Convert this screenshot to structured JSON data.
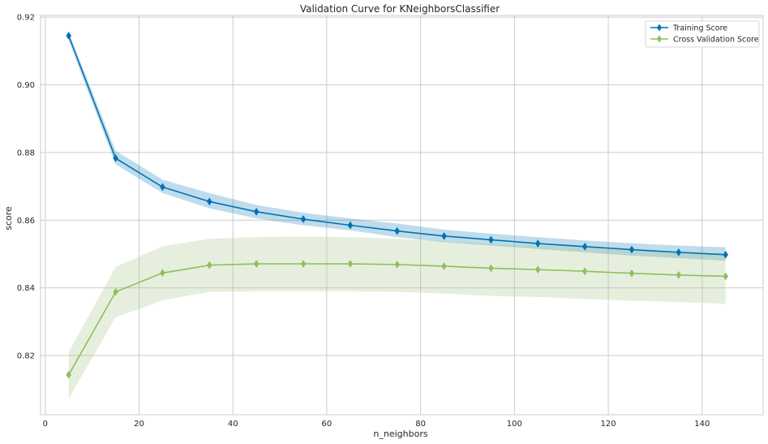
{
  "chart_data": {
    "type": "line",
    "title": "Validation Curve for KNeighborsClassifier",
    "xlabel": "n_neighbors",
    "ylabel": "score",
    "xlim": [
      -1,
      153
    ],
    "ylim": [
      0.8025,
      0.9205
    ],
    "grid": true,
    "legend_position": "top-right",
    "x": [
      5,
      15,
      25,
      35,
      45,
      55,
      65,
      75,
      85,
      95,
      105,
      115,
      125,
      135,
      145
    ],
    "x_ticks": [
      0,
      20,
      40,
      60,
      80,
      100,
      120,
      140
    ],
    "x_tick_labels": [
      "0",
      "20",
      "40",
      "60",
      "80",
      "100",
      "120",
      "140"
    ],
    "y_ticks": [
      0.82,
      0.84,
      0.86,
      0.88,
      0.9,
      0.92
    ],
    "y_tick_labels": [
      "0.82",
      "0.84",
      "0.86",
      "0.88",
      "0.90",
      "0.92"
    ],
    "series": [
      {
        "name": "Training Score",
        "color": "#0072B2",
        "band_color": "#0072B2",
        "marker": "diamond",
        "values": [
          0.9145,
          0.8783,
          0.8698,
          0.8655,
          0.8625,
          0.8603,
          0.8585,
          0.8568,
          0.8553,
          0.8542,
          0.8531,
          0.8522,
          0.8513,
          0.8505,
          0.8498
        ],
        "upper": [
          0.9155,
          0.8805,
          0.872,
          0.868,
          0.8645,
          0.8622,
          0.8605,
          0.859,
          0.8572,
          0.856,
          0.855,
          0.854,
          0.8532,
          0.8525,
          0.852
        ],
        "lower": [
          0.913,
          0.8765,
          0.868,
          0.8635,
          0.8605,
          0.8585,
          0.857,
          0.855,
          0.8535,
          0.8525,
          0.8515,
          0.8505,
          0.8495,
          0.8488,
          0.848
        ]
      },
      {
        "name": "Cross Validation Score",
        "color": "#8FBF5E",
        "band_color": "#9BC07A",
        "marker": "diamond",
        "values": [
          0.8143,
          0.8388,
          0.8444,
          0.8467,
          0.8471,
          0.8471,
          0.8471,
          0.8469,
          0.8464,
          0.8458,
          0.8454,
          0.8449,
          0.8443,
          0.8438,
          0.8434
        ],
        "upper": [
          0.821,
          0.8462,
          0.8523,
          0.8545,
          0.855,
          0.8552,
          0.855,
          0.8545,
          0.8538,
          0.853,
          0.8525,
          0.852,
          0.8515,
          0.8508,
          0.8503
        ],
        "lower": [
          0.8073,
          0.8313,
          0.8363,
          0.8388,
          0.839,
          0.839,
          0.839,
          0.8388,
          0.8383,
          0.8376,
          0.8373,
          0.8367,
          0.8362,
          0.8358,
          0.8353
        ]
      }
    ]
  }
}
